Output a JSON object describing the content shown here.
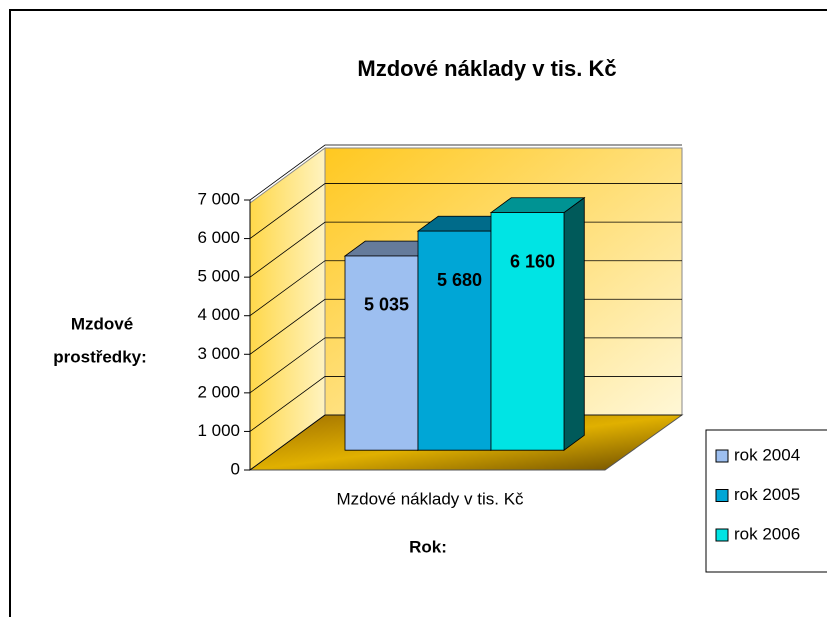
{
  "chart_data": {
    "type": "bar3d",
    "title": "Mzdové náklady v tis. Kč",
    "y_label": [
      "Mzdové",
      "prostředky:"
    ],
    "x_label": "Rok:",
    "categories": [
      "Mzdové náklady v tis. Kč"
    ],
    "series": [
      {
        "name": "rok 2004",
        "color": "#9dbff0",
        "values": [
          5035
        ],
        "value_labels": [
          "5 035"
        ]
      },
      {
        "name": "rok 2005",
        "color": "#00a6d6",
        "values": [
          5680
        ],
        "value_labels": [
          "5 680"
        ]
      },
      {
        "name": "rok 2006",
        "color": "#00e4e4",
        "values": [
          6160
        ],
        "value_labels": [
          "6 160"
        ]
      }
    ],
    "ylim": [
      0,
      7000
    ],
    "yticks": [
      0,
      {
        "value": 1000,
        "label": "1 000"
      },
      {
        "value": 2000,
        "label": "2 000"
      },
      {
        "value": 3000,
        "label": "3 000"
      },
      {
        "value": 4000,
        "label": "4 000"
      },
      {
        "value": 5000,
        "label": "5 000"
      },
      {
        "value": 6000,
        "label": "6 000"
      },
      {
        "value": 7000,
        "label": "7 000"
      }
    ],
    "grid": true,
    "legend": "right"
  }
}
